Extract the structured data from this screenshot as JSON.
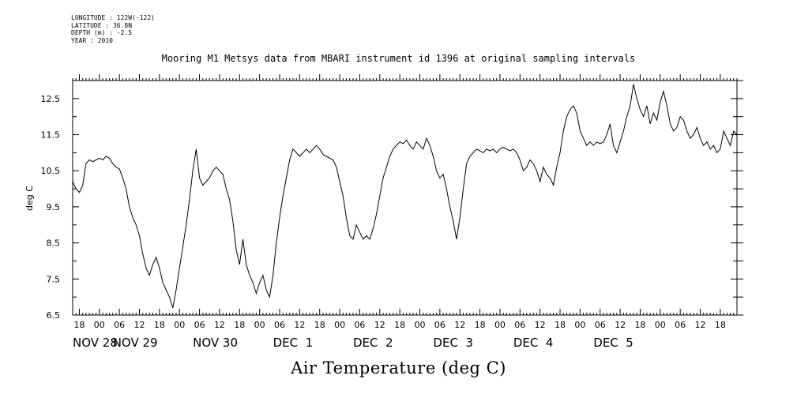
{
  "metadata": {
    "longitude": "LONGITUDE : 122W(-122)",
    "latitude": "LATITUDE : 36.8N",
    "depth": "DEPTH (m) : -2.5",
    "year": "YEAR : 2010"
  },
  "chart_data": {
    "type": "line",
    "title": "Mooring M1 Metsys data from MBARI instrument id 1396 at original sampling intervals",
    "xlabel": "Air Temperature (deg C)",
    "ylabel": "deg C",
    "ylim": [
      6.5,
      13.0
    ],
    "xlim_hours": [
      -8,
      191
    ],
    "y_tick_labels": [
      "6.5",
      "7.5",
      "8.5",
      "9.5",
      "10.5",
      "11.5",
      "12.5"
    ],
    "y_tick_values": [
      6.5,
      7.5,
      8.5,
      9.5,
      10.5,
      11.5,
      12.5
    ],
    "x_hour_labels": [
      {
        "t": -6,
        "label": "18"
      },
      {
        "t": 0,
        "label": "00"
      },
      {
        "t": 6,
        "label": "06"
      },
      {
        "t": 12,
        "label": "12"
      },
      {
        "t": 18,
        "label": "18"
      },
      {
        "t": 24,
        "label": "00"
      },
      {
        "t": 30,
        "label": "06"
      },
      {
        "t": 36,
        "label": "12"
      },
      {
        "t": 42,
        "label": "18"
      },
      {
        "t": 48,
        "label": "00"
      },
      {
        "t": 54,
        "label": "06"
      },
      {
        "t": 60,
        "label": "12"
      },
      {
        "t": 66,
        "label": "18"
      },
      {
        "t": 72,
        "label": "00"
      },
      {
        "t": 78,
        "label": "06"
      },
      {
        "t": 84,
        "label": "12"
      },
      {
        "t": 90,
        "label": "18"
      },
      {
        "t": 96,
        "label": "00"
      },
      {
        "t": 102,
        "label": "06"
      },
      {
        "t": 108,
        "label": "12"
      },
      {
        "t": 114,
        "label": "18"
      },
      {
        "t": 120,
        "label": "00"
      },
      {
        "t": 126,
        "label": "06"
      },
      {
        "t": 132,
        "label": "12"
      },
      {
        "t": 138,
        "label": "18"
      },
      {
        "t": 144,
        "label": "00"
      },
      {
        "t": 150,
        "label": "06"
      },
      {
        "t": 156,
        "label": "12"
      },
      {
        "t": 162,
        "label": "18"
      },
      {
        "t": 168,
        "label": "00"
      },
      {
        "t": 174,
        "label": "06"
      },
      {
        "t": 180,
        "label": "12"
      },
      {
        "t": 186,
        "label": "18"
      }
    ],
    "x_day_labels": [
      {
        "t": -8,
        "label": "NOV 28"
      },
      {
        "t": 4,
        "label": "NOV 29"
      },
      {
        "t": 28,
        "label": "NOV 30"
      },
      {
        "t": 52,
        "label": "DEC  1"
      },
      {
        "t": 76,
        "label": "DEC  2"
      },
      {
        "t": 100,
        "label": "DEC  3"
      },
      {
        "t": 124,
        "label": "DEC  4"
      },
      {
        "t": 148,
        "label": "DEC  5"
      }
    ],
    "series": [
      {
        "name": "",
        "points": [
          [
            -8,
            10.2
          ],
          [
            -7,
            10.0
          ],
          [
            -6,
            9.9
          ],
          [
            -5,
            10.1
          ],
          [
            -4,
            10.7
          ],
          [
            -3,
            10.8
          ],
          [
            -2,
            10.75
          ],
          [
            -1,
            10.8
          ],
          [
            0,
            10.85
          ],
          [
            1,
            10.8
          ],
          [
            2,
            10.9
          ],
          [
            3,
            10.85
          ],
          [
            4,
            10.7
          ],
          [
            5,
            10.6
          ],
          [
            6,
            10.55
          ],
          [
            7,
            10.3
          ],
          [
            8,
            10.0
          ],
          [
            9,
            9.5
          ],
          [
            10,
            9.2
          ],
          [
            11,
            9.0
          ],
          [
            12,
            8.7
          ],
          [
            13,
            8.2
          ],
          [
            14,
            7.8
          ],
          [
            15,
            7.6
          ],
          [
            16,
            7.9
          ],
          [
            17,
            8.1
          ],
          [
            18,
            7.8
          ],
          [
            19,
            7.4
          ],
          [
            20,
            7.2
          ],
          [
            21,
            7.0
          ],
          [
            22,
            6.7
          ],
          [
            23,
            7.2
          ],
          [
            24,
            7.8
          ],
          [
            25,
            8.4
          ],
          [
            26,
            9.0
          ],
          [
            27,
            9.7
          ],
          [
            28,
            10.5
          ],
          [
            29,
            11.1
          ],
          [
            30,
            10.3
          ],
          [
            31,
            10.1
          ],
          [
            32,
            10.2
          ],
          [
            33,
            10.3
          ],
          [
            34,
            10.5
          ],
          [
            35,
            10.6
          ],
          [
            36,
            10.5
          ],
          [
            37,
            10.4
          ],
          [
            38,
            10.0
          ],
          [
            39,
            9.7
          ],
          [
            40,
            9.1
          ],
          [
            41,
            8.3
          ],
          [
            42,
            7.9
          ],
          [
            43,
            8.6
          ],
          [
            44,
            7.9
          ],
          [
            45,
            7.6
          ],
          [
            46,
            7.4
          ],
          [
            47,
            7.1
          ],
          [
            48,
            7.4
          ],
          [
            49,
            7.6
          ],
          [
            50,
            7.2
          ],
          [
            51,
            7.0
          ],
          [
            52,
            7.6
          ],
          [
            53,
            8.5
          ],
          [
            54,
            9.2
          ],
          [
            55,
            9.8
          ],
          [
            56,
            10.3
          ],
          [
            57,
            10.8
          ],
          [
            58,
            11.1
          ],
          [
            59,
            11.0
          ],
          [
            60,
            10.9
          ],
          [
            61,
            11.0
          ],
          [
            62,
            11.1
          ],
          [
            63,
            11.0
          ],
          [
            64,
            11.1
          ],
          [
            65,
            11.2
          ],
          [
            66,
            11.1
          ],
          [
            67,
            10.95
          ],
          [
            68,
            10.9
          ],
          [
            69,
            10.85
          ],
          [
            70,
            10.8
          ],
          [
            71,
            10.6
          ],
          [
            72,
            10.2
          ],
          [
            73,
            9.8
          ],
          [
            74,
            9.2
          ],
          [
            75,
            8.7
          ],
          [
            76,
            8.6
          ],
          [
            77,
            9.0
          ],
          [
            78,
            8.8
          ],
          [
            79,
            8.6
          ],
          [
            80,
            8.7
          ],
          [
            81,
            8.6
          ],
          [
            82,
            8.9
          ],
          [
            83,
            9.3
          ],
          [
            84,
            9.8
          ],
          [
            85,
            10.3
          ],
          [
            86,
            10.6
          ],
          [
            87,
            10.9
          ],
          [
            88,
            11.1
          ],
          [
            89,
            11.2
          ],
          [
            90,
            11.3
          ],
          [
            91,
            11.25
          ],
          [
            92,
            11.35
          ],
          [
            93,
            11.2
          ],
          [
            94,
            11.1
          ],
          [
            95,
            11.3
          ],
          [
            96,
            11.2
          ],
          [
            97,
            11.1
          ],
          [
            98,
            11.4
          ],
          [
            99,
            11.2
          ],
          [
            100,
            10.9
          ],
          [
            101,
            10.5
          ],
          [
            102,
            10.3
          ],
          [
            103,
            10.4
          ],
          [
            104,
            10.0
          ],
          [
            105,
            9.5
          ],
          [
            106,
            9.1
          ],
          [
            107,
            8.6
          ],
          [
            108,
            9.2
          ],
          [
            109,
            10.0
          ],
          [
            110,
            10.7
          ],
          [
            111,
            10.9
          ],
          [
            112,
            11.0
          ],
          [
            113,
            11.1
          ],
          [
            114,
            11.05
          ],
          [
            115,
            11.0
          ],
          [
            116,
            11.1
          ],
          [
            117,
            11.05
          ],
          [
            118,
            11.1
          ],
          [
            119,
            11.0
          ],
          [
            120,
            11.1
          ],
          [
            121,
            11.15
          ],
          [
            122,
            11.1
          ],
          [
            123,
            11.05
          ],
          [
            124,
            11.1
          ],
          [
            125,
            11.0
          ],
          [
            126,
            10.8
          ],
          [
            127,
            10.5
          ],
          [
            128,
            10.6
          ],
          [
            129,
            10.8
          ],
          [
            130,
            10.7
          ],
          [
            131,
            10.5
          ],
          [
            132,
            10.2
          ],
          [
            133,
            10.6
          ],
          [
            134,
            10.4
          ],
          [
            135,
            10.3
          ],
          [
            136,
            10.1
          ],
          [
            137,
            10.6
          ],
          [
            138,
            11.0
          ],
          [
            139,
            11.6
          ],
          [
            140,
            12.0
          ],
          [
            141,
            12.2
          ],
          [
            142,
            12.3
          ],
          [
            143,
            12.1
          ],
          [
            144,
            11.6
          ],
          [
            145,
            11.4
          ],
          [
            146,
            11.2
          ],
          [
            147,
            11.3
          ],
          [
            148,
            11.2
          ],
          [
            149,
            11.3
          ],
          [
            150,
            11.25
          ],
          [
            151,
            11.3
          ],
          [
            152,
            11.5
          ],
          [
            153,
            11.8
          ],
          [
            154,
            11.2
          ],
          [
            155,
            11.0
          ],
          [
            156,
            11.3
          ],
          [
            157,
            11.6
          ],
          [
            158,
            12.0
          ],
          [
            159,
            12.3
          ],
          [
            160,
            12.9
          ],
          [
            161,
            12.5
          ],
          [
            162,
            12.2
          ],
          [
            163,
            12.0
          ],
          [
            164,
            12.3
          ],
          [
            165,
            11.8
          ],
          [
            166,
            12.1
          ],
          [
            167,
            11.9
          ],
          [
            168,
            12.4
          ],
          [
            169,
            12.7
          ],
          [
            170,
            12.3
          ],
          [
            171,
            11.8
          ],
          [
            172,
            11.6
          ],
          [
            173,
            11.7
          ],
          [
            174,
            12.0
          ],
          [
            175,
            11.9
          ],
          [
            176,
            11.6
          ],
          [
            177,
            11.4
          ],
          [
            178,
            11.5
          ],
          [
            179,
            11.7
          ],
          [
            180,
            11.4
          ],
          [
            181,
            11.2
          ],
          [
            182,
            11.3
          ],
          [
            183,
            11.1
          ],
          [
            184,
            11.2
          ],
          [
            185,
            11.0
          ],
          [
            186,
            11.1
          ],
          [
            187,
            11.6
          ],
          [
            188,
            11.4
          ],
          [
            189,
            11.2
          ],
          [
            190,
            11.6
          ],
          [
            191,
            11.5
          ]
        ]
      }
    ]
  }
}
